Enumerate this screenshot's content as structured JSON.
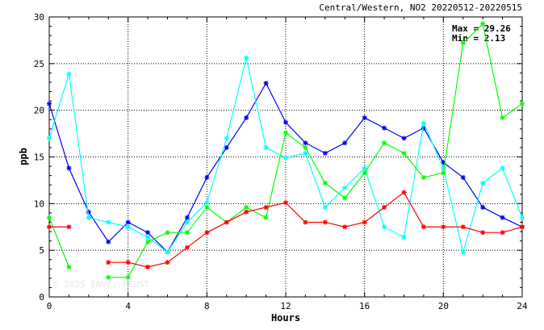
{
  "chart_data": {
    "type": "line",
    "title": "Central/Western, NO2 20220512-20220515",
    "xlabel": "Hours",
    "ylabel": "ppb",
    "xlim": [
      0,
      24
    ],
    "ylim": [
      0,
      30
    ],
    "xticks": [
      0,
      4,
      8,
      12,
      16,
      20,
      24
    ],
    "yticks": [
      0,
      5,
      10,
      15,
      20,
      25,
      30
    ],
    "grid": true,
    "max_text": "Max = 29.26",
    "min_text": "Min =  2.13",
    "watermark": "© 2025  ENVF, HKUST",
    "x": [
      0,
      1,
      2,
      3,
      4,
      5,
      6,
      7,
      8,
      9,
      10,
      11,
      12,
      13,
      14,
      15,
      16,
      17,
      18,
      19,
      20,
      21,
      22,
      23,
      24
    ],
    "series": [
      {
        "color": "#0000ff",
        "values": [
          20.7,
          13.8,
          9.1,
          5.9,
          8.0,
          6.9,
          4.8,
          8.5,
          12.8,
          16.0,
          19.2,
          22.9,
          18.7,
          16.5,
          15.4,
          16.5,
          19.2,
          18.1,
          17.0,
          18.1,
          14.4,
          12.8,
          9.6,
          8.5,
          7.5
        ]
      },
      {
        "color": "#00ffff",
        "values": [
          17.0,
          23.9,
          8.5,
          8.0,
          7.5,
          6.4,
          4.8,
          8.0,
          10.1,
          17.0,
          25.6,
          16.0,
          14.9,
          15.4,
          9.6,
          11.7,
          13.8,
          7.5,
          6.4,
          18.6,
          13.8,
          4.8,
          12.2,
          13.8,
          8.5
        ]
      },
      {
        "color": "#00ff00",
        "values": [
          8.5,
          3.2,
          null,
          2.1,
          2.1,
          5.9,
          6.9,
          6.9,
          9.6,
          8.0,
          9.6,
          8.5,
          17.6,
          16.0,
          12.2,
          10.6,
          13.3,
          16.5,
          15.4,
          12.8,
          13.3,
          27.2,
          29.26,
          19.2,
          20.7
        ]
      },
      {
        "color": "#ff0000",
        "values": [
          7.5,
          7.5,
          null,
          3.7,
          3.7,
          3.2,
          3.7,
          5.3,
          6.9,
          8.0,
          9.1,
          9.6,
          10.1,
          8.0,
          8.0,
          7.5,
          8.0,
          9.6,
          11.2,
          7.5,
          7.5,
          7.5,
          6.9,
          6.9,
          7.5
        ]
      }
    ]
  }
}
